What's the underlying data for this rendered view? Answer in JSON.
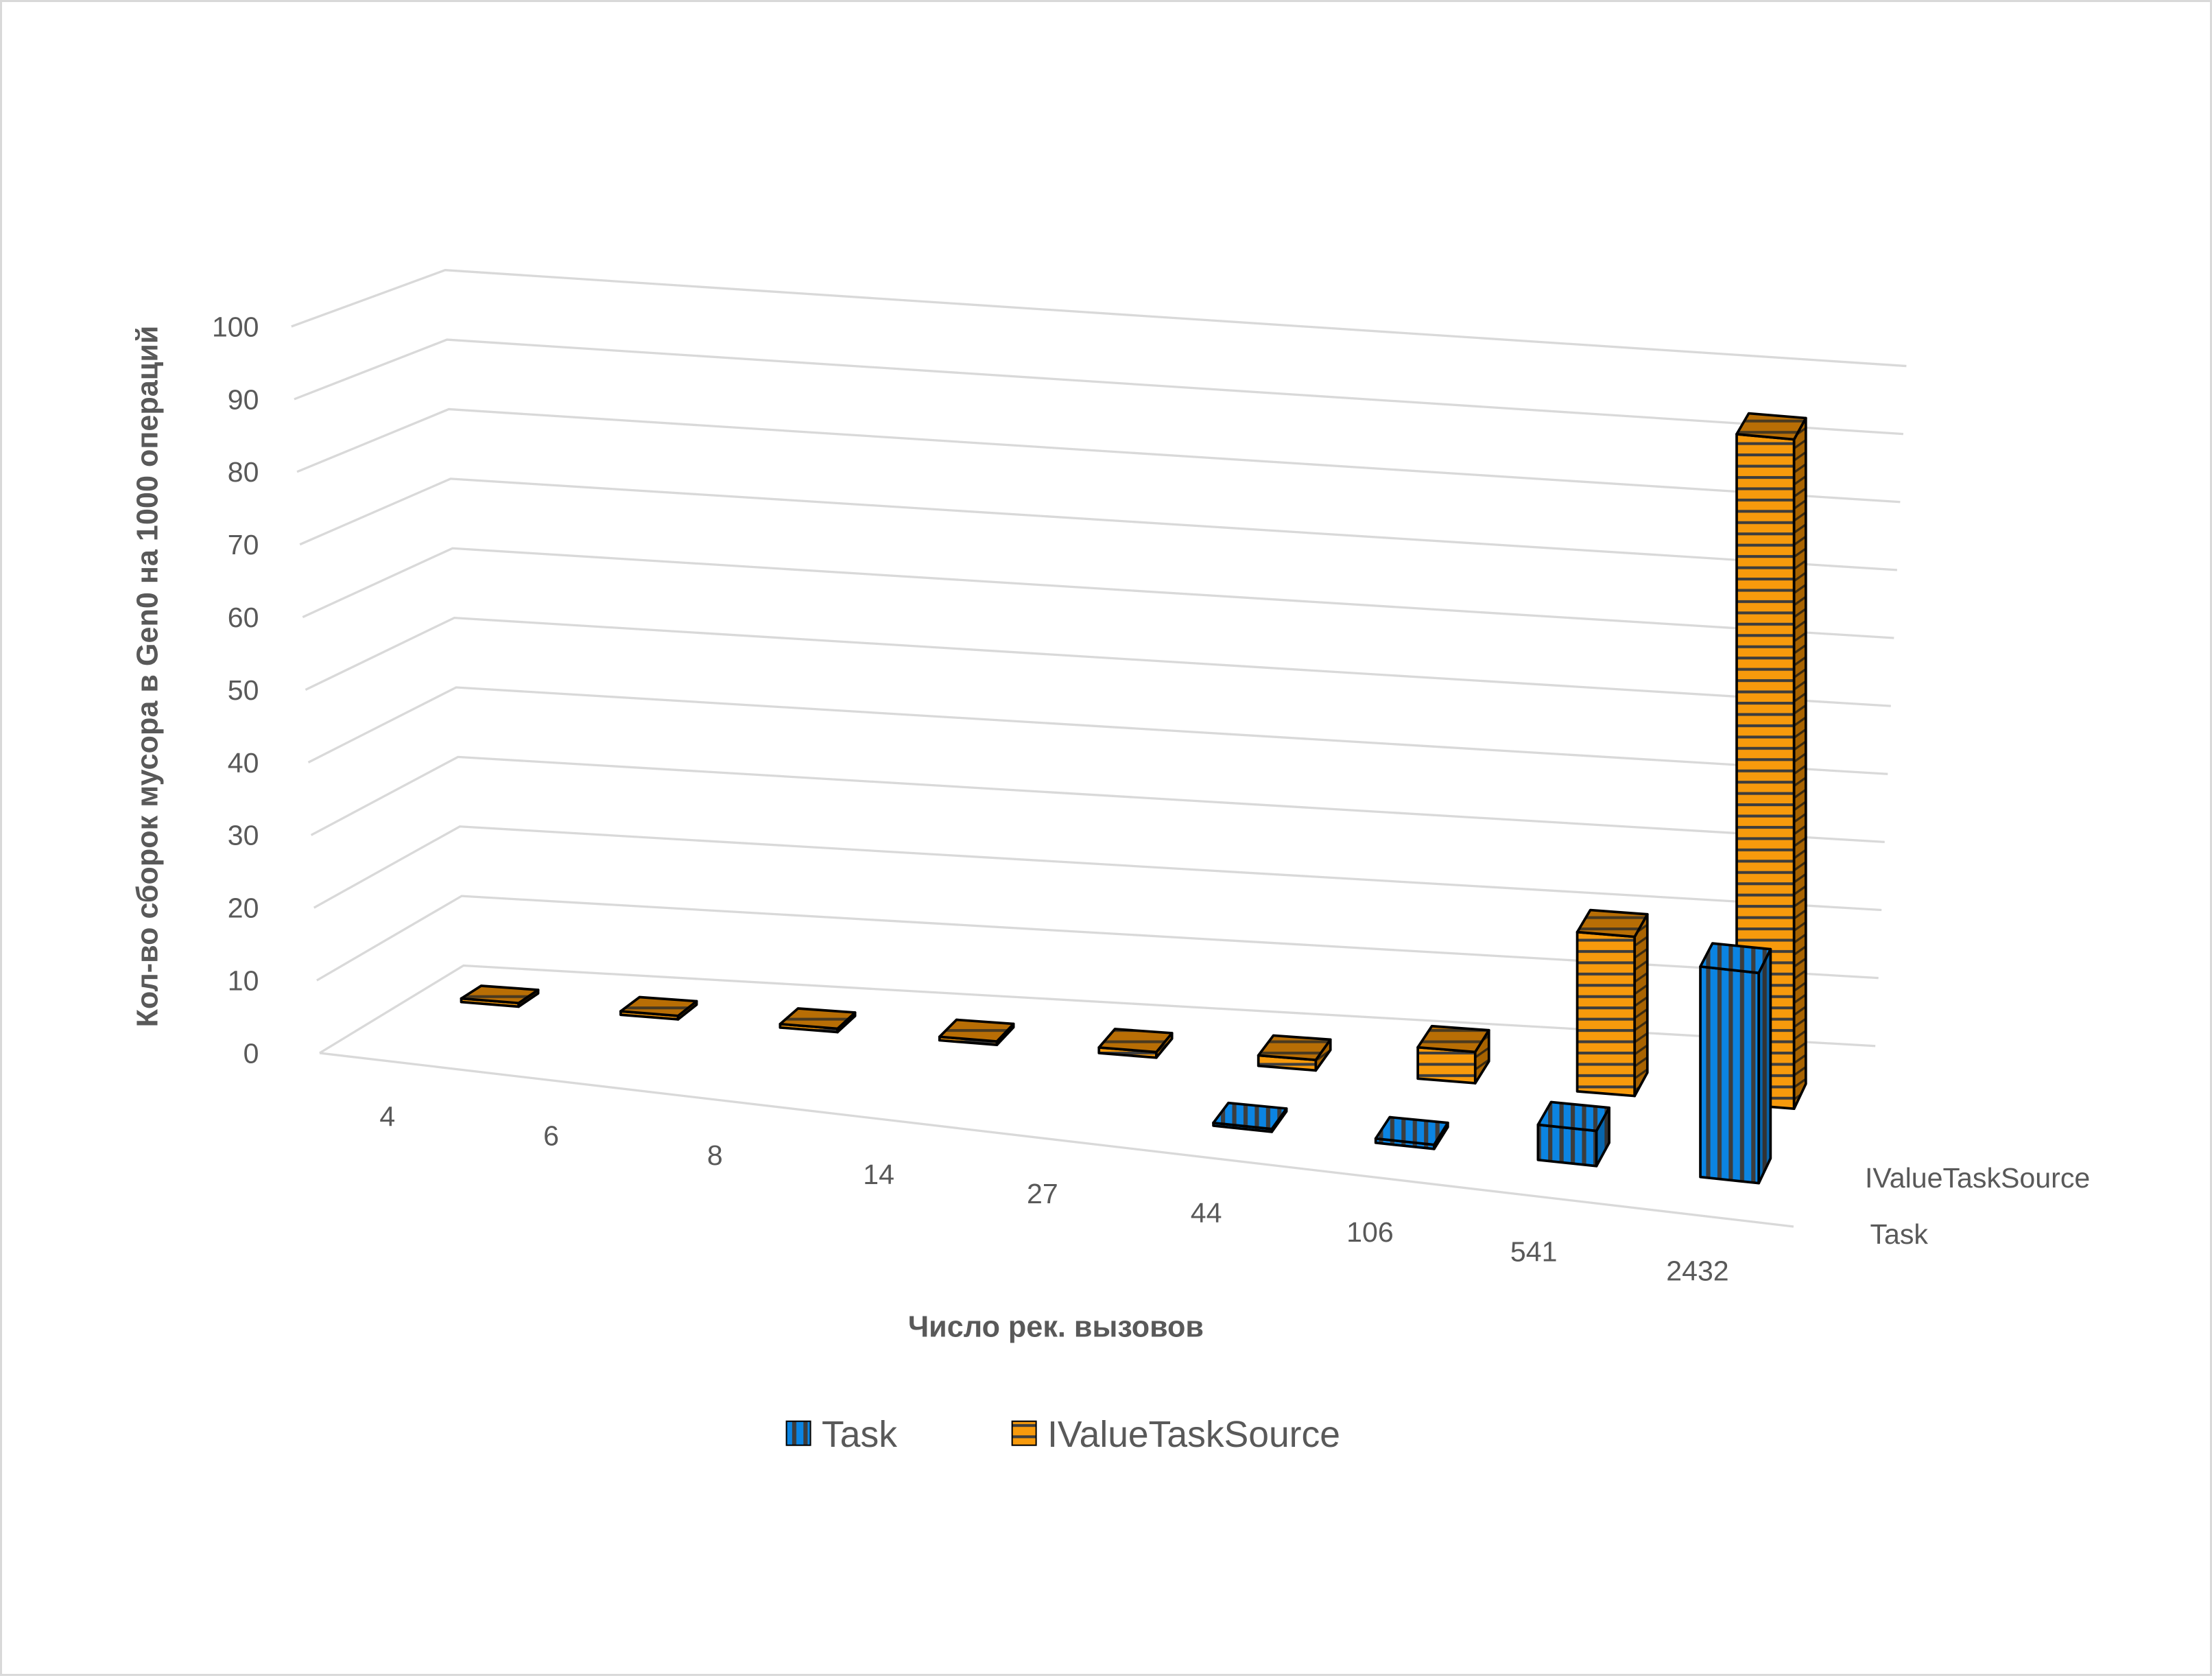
{
  "chart_data": {
    "type": "bar",
    "subtype": "3d-column",
    "title": "",
    "xlabel": "Число рек. вызовов",
    "ylabel": "Кол-во сборок мусора в Gen0 на 1000 операций",
    "ylim": [
      0,
      100
    ],
    "yticks": [
      "0",
      "10",
      "20",
      "30",
      "40",
      "50",
      "60",
      "70",
      "80",
      "90",
      "100"
    ],
    "grid": true,
    "legend_position": "bottom",
    "categories": [
      "4",
      "6",
      "8",
      "14",
      "27",
      "44",
      "106",
      "541",
      "2432"
    ],
    "series": [
      {
        "name": "Task",
        "color": "#0b84e2",
        "stripe": "vertical",
        "values": [
          0,
          0,
          0,
          0,
          0,
          0.4,
          0.6,
          5,
          30
        ]
      },
      {
        "name": "IValueTaskSource",
        "color": "#f79a0c",
        "stripe": "horizontal",
        "values": [
          0.5,
          0.5,
          0.5,
          0.5,
          0.8,
          1.5,
          4.5,
          23,
          97
        ]
      }
    ]
  }
}
